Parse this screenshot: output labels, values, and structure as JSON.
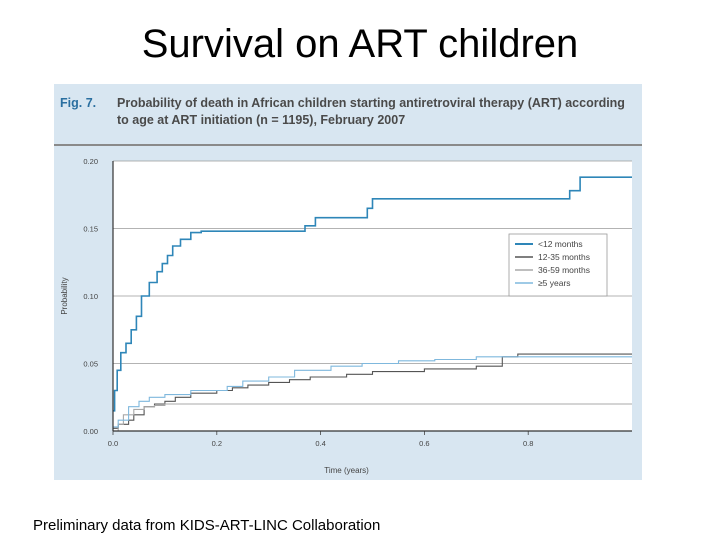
{
  "slide": {
    "title": "Survival on ART children",
    "footnote": "Preliminary data from KIDS-ART-LINC Collaboration"
  },
  "figure": {
    "label": "Fig. 7.",
    "caption": "Probability of death in African children starting antiretroviral therapy (ART) according to age at ART initiation (n = 1195), February 2007",
    "background": "#d8e6f1"
  },
  "chart_data": {
    "type": "line",
    "title": "",
    "xlabel": "Time (years)",
    "ylabel": "Probability",
    "xlim": [
      0,
      1
    ],
    "ylim": [
      0,
      0.2
    ],
    "xticks": [
      "0.0",
      "0.2",
      "0.4",
      "0.6",
      "0.8"
    ],
    "xtick_values": [
      0,
      0.2,
      0.4,
      0.6,
      0.8
    ],
    "yticks": [
      "0.00",
      "0.05",
      "0.10",
      "0.15",
      "0.20"
    ],
    "ytick_values": [
      0,
      0.05,
      0.1,
      0.15,
      0.2
    ],
    "grid": "horizontal",
    "legend_position": "right",
    "series": [
      {
        "name": "<12 months",
        "color": "#2e86b8",
        "width": 1.6,
        "x": [
          0,
          0.003,
          0.008,
          0.015,
          0.025,
          0.035,
          0.045,
          0.055,
          0.07,
          0.085,
          0.095,
          0.105,
          0.115,
          0.13,
          0.15,
          0.17,
          0.37,
          0.39,
          0.49,
          0.5,
          0.88,
          0.9,
          1.0
        ],
        "y": [
          0.015,
          0.03,
          0.045,
          0.058,
          0.065,
          0.075,
          0.085,
          0.1,
          0.11,
          0.118,
          0.124,
          0.13,
          0.137,
          0.142,
          0.147,
          0.148,
          0.152,
          0.158,
          0.165,
          0.172,
          0.178,
          0.188,
          0.188
        ]
      },
      {
        "name": "12-35 months",
        "color": "#555555",
        "width": 1.1,
        "x": [
          0,
          0.01,
          0.03,
          0.04,
          0.06,
          0.08,
          0.1,
          0.12,
          0.15,
          0.2,
          0.23,
          0.26,
          0.3,
          0.34,
          0.38,
          0.45,
          0.5,
          0.6,
          0.7,
          0.75,
          0.78,
          1.0
        ],
        "y": [
          0.002,
          0.005,
          0.008,
          0.012,
          0.018,
          0.02,
          0.022,
          0.025,
          0.028,
          0.03,
          0.032,
          0.034,
          0.036,
          0.038,
          0.04,
          0.042,
          0.044,
          0.046,
          0.048,
          0.055,
          0.057,
          0.057
        ]
      },
      {
        "name": "36-59 months",
        "color": "#a8a8a8",
        "width": 1.1,
        "x": [
          0,
          0.01,
          0.02,
          0.04,
          0.06,
          0.08,
          0.1,
          0.15,
          0.2,
          1.0
        ],
        "y": [
          0,
          0.005,
          0.012,
          0.016,
          0.018,
          0.019,
          0.02,
          0.02,
          0.02,
          0.02
        ]
      },
      {
        "name": "≥5 years",
        "color": "#7fb8dd",
        "width": 1.1,
        "x": [
          0,
          0.01,
          0.03,
          0.05,
          0.07,
          0.1,
          0.15,
          0.22,
          0.25,
          0.3,
          0.35,
          0.42,
          0.48,
          0.55,
          0.62,
          0.7,
          0.75,
          1.0
        ],
        "y": [
          0.003,
          0.008,
          0.018,
          0.022,
          0.025,
          0.027,
          0.03,
          0.033,
          0.037,
          0.04,
          0.045,
          0.048,
          0.05,
          0.052,
          0.053,
          0.055,
          0.055,
          0.055
        ]
      }
    ]
  }
}
